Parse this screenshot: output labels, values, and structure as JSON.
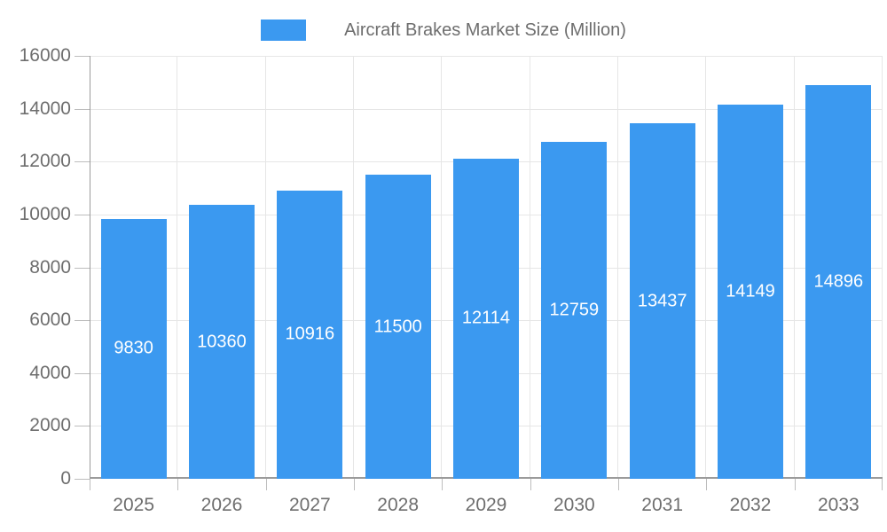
{
  "chart_data": {
    "type": "bar",
    "title": "",
    "legend": {
      "label": "Aircraft Brakes Market Size (Million)",
      "position": "top-center"
    },
    "categories": [
      "2025",
      "2026",
      "2027",
      "2028",
      "2029",
      "2030",
      "2031",
      "2032",
      "2033"
    ],
    "series": [
      {
        "name": "Aircraft Brakes Market Size (Million)",
        "values": [
          9830,
          10360,
          10916,
          11500,
          12114,
          12759,
          13437,
          14149,
          14896
        ]
      }
    ],
    "data_labels": [
      "9830",
      "10360",
      "10916",
      "11500",
      "12114",
      "12759",
      "13437",
      "14149",
      "14896"
    ],
    "xlabel": "",
    "ylabel": "",
    "ylim": [
      0,
      16000
    ],
    "ytick_step": 2000,
    "ytick_labels": [
      "0",
      "2000",
      "4000",
      "6000",
      "8000",
      "10000",
      "12000",
      "14000",
      "16000"
    ],
    "grid": true,
    "style": {
      "bar_color": "#3b99f0",
      "bar_label_color": "#ffffff",
      "grid_color": "#e6e6e6",
      "axis_line_color": "#9b9b9b",
      "tick_color": "#bdbdbd",
      "axis_text_color": "#6e6e6e",
      "background_color": "#ffffff"
    }
  }
}
